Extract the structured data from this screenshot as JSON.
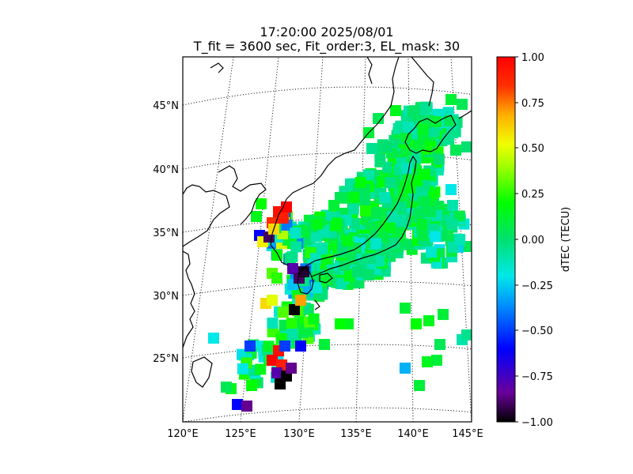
{
  "title_line1": "17:20:00 2025/08/01",
  "title_line2": "T_fit = 3600 sec, Fit_order:3, EL_mask: 30",
  "map": {
    "lon_range": [
      120,
      145
    ],
    "lat_range": [
      20,
      49
    ],
    "lon_ticks": [
      "120°E",
      "125°E",
      "130°E",
      "135°E",
      "140°E",
      "145°E"
    ],
    "lat_ticks": [
      "25°N",
      "30°N",
      "35°N",
      "40°N",
      "45°N"
    ],
    "graticule": "dotted",
    "coastline_color": "#000000"
  },
  "colorbar": {
    "label": "dTEC (TECU)",
    "range": [
      -1.0,
      1.0
    ],
    "colormap": "nipy_spectral-like",
    "ticks": [
      "1.00",
      "0.75",
      "0.50",
      "0.25",
      "0.00",
      "−0.25",
      "−0.50",
      "−0.75",
      "−1.00"
    ]
  }
}
